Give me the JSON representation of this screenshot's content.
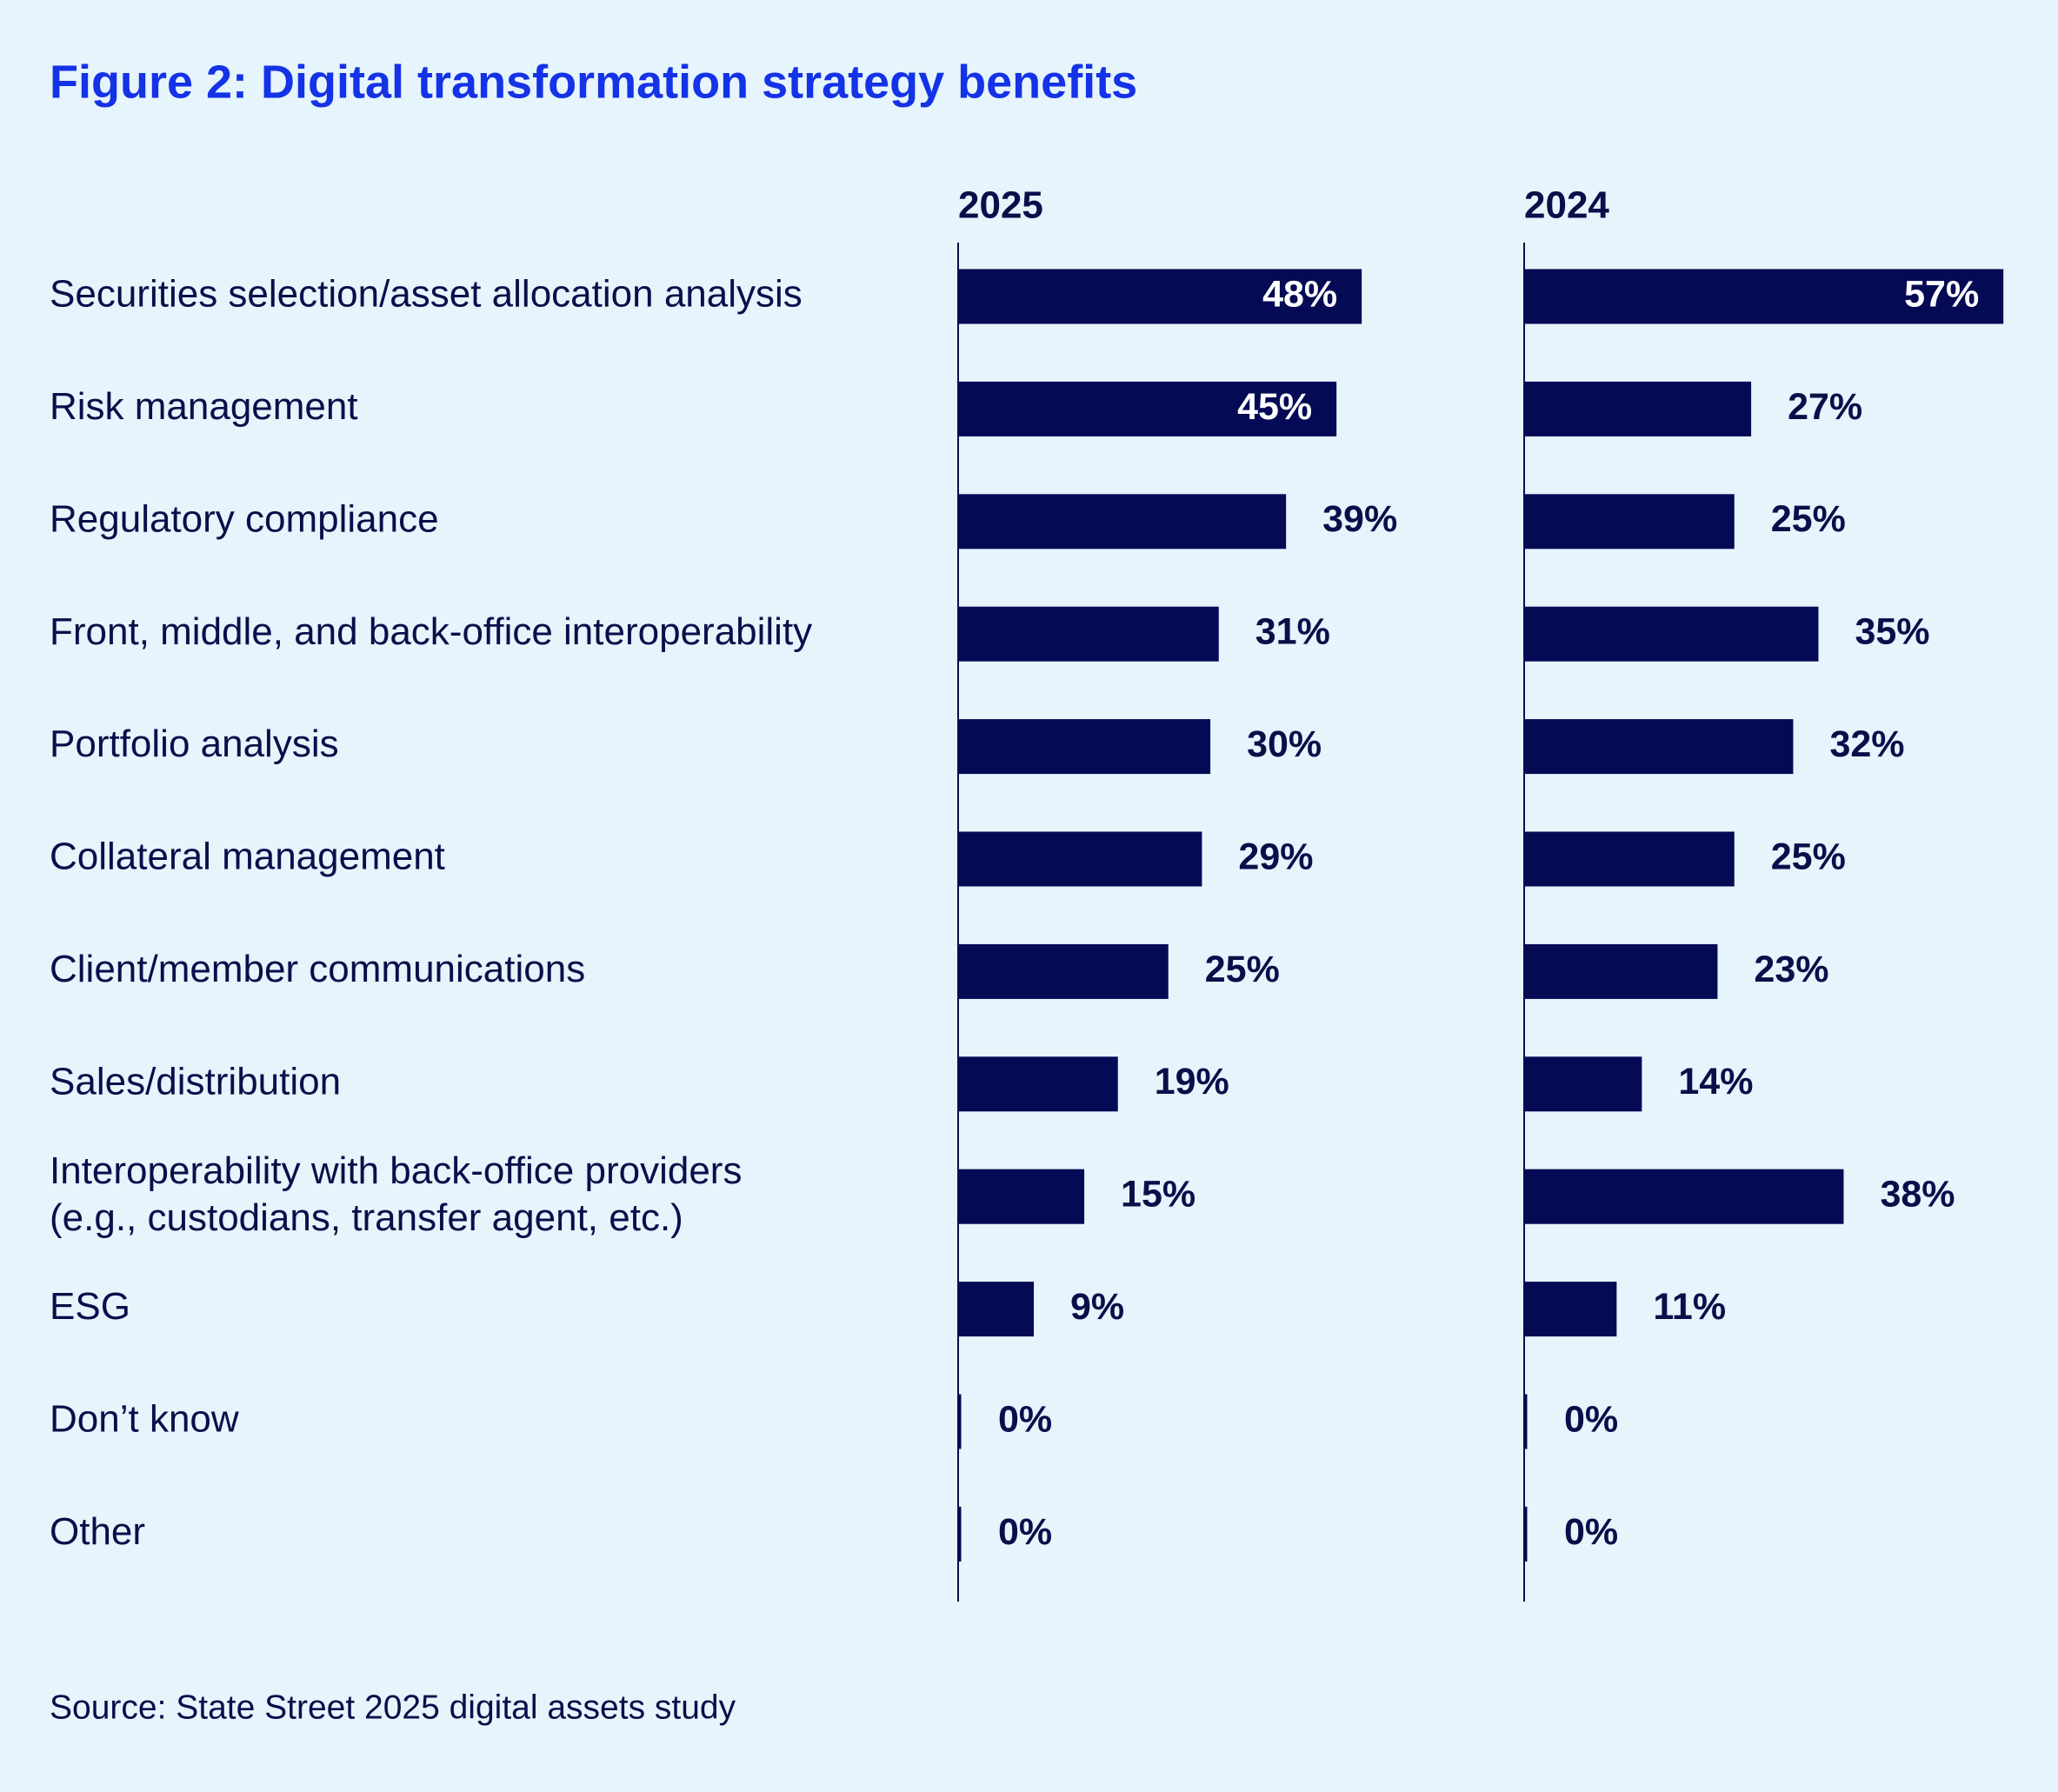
{
  "chart_data": {
    "type": "bar",
    "orientation": "horizontal",
    "title": "Figure 2: Digital transformation strategy benefits",
    "categories": [
      "Securities selection/asset allocation analysis",
      "Risk management",
      "Regulatory compliance",
      "Front, middle, and back-office interoperability",
      "Portfolio analysis",
      "Collateral management",
      "Client/member communications",
      "Sales/distribution",
      "Interoperability with back-office providers\n(e.g., custodians, transfer agent, etc.)",
      "ESG",
      "Don’t know",
      "Other"
    ],
    "series": [
      {
        "name": "2025",
        "color": "#050a55",
        "values": [
          48,
          45,
          39,
          31,
          30,
          29,
          25,
          19,
          15,
          9,
          0,
          0
        ],
        "value_labels": [
          "48%",
          "45%",
          "39%",
          "31%",
          "30%",
          "29%",
          "25%",
          "19%",
          "15%",
          "9%",
          "0%",
          "0%"
        ]
      },
      {
        "name": "2024",
        "color": "#050a55",
        "values": [
          57,
          27,
          25,
          35,
          32,
          25,
          23,
          14,
          38,
          11,
          0,
          0
        ],
        "value_labels": [
          "57%",
          "27%",
          "25%",
          "35%",
          "32%",
          "25%",
          "23%",
          "14%",
          "38%",
          "11%",
          "0%",
          "0%"
        ]
      }
    ],
    "source": "Source: State Street 2025 digital assets study"
  }
}
